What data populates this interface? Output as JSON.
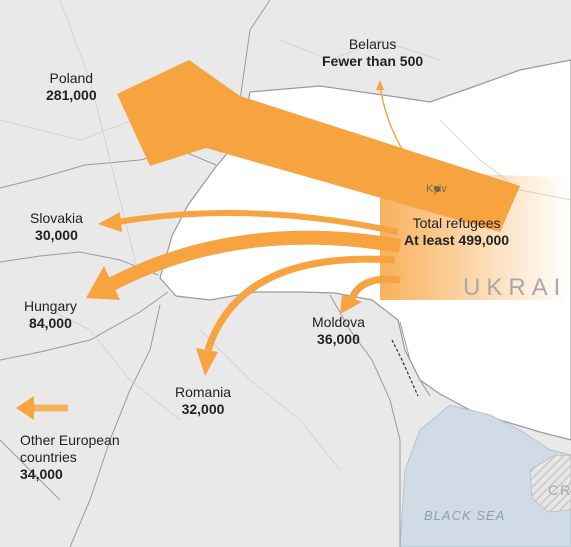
{
  "destinations": {
    "poland": {
      "name": "Poland",
      "value": "281,000"
    },
    "belarus": {
      "name": "Belarus",
      "value": "Fewer than 500"
    },
    "slovakia": {
      "name": "Slovakia",
      "value": "30,000"
    },
    "hungary": {
      "name": "Hungary",
      "value": "84,000"
    },
    "romania": {
      "name": "Romania",
      "value": "32,000"
    },
    "moldova": {
      "name": "Moldova",
      "value": "36,000"
    },
    "other": {
      "name_line1": "Other European",
      "name_line2": "countries",
      "value": "34,000"
    }
  },
  "total": {
    "label": "Total refugees",
    "value": "At least 499,000"
  },
  "places": {
    "kyiv": "Kyiv",
    "ukraine": "UKRAI",
    "sea": "BLACK SEA",
    "crimea": "CR"
  },
  "colors": {
    "arrow": "#f7a340",
    "land": "#e9e9e9",
    "ukraine": "#ffffff",
    "water": "#d0dbe6",
    "border": "#9a9a9a"
  }
}
